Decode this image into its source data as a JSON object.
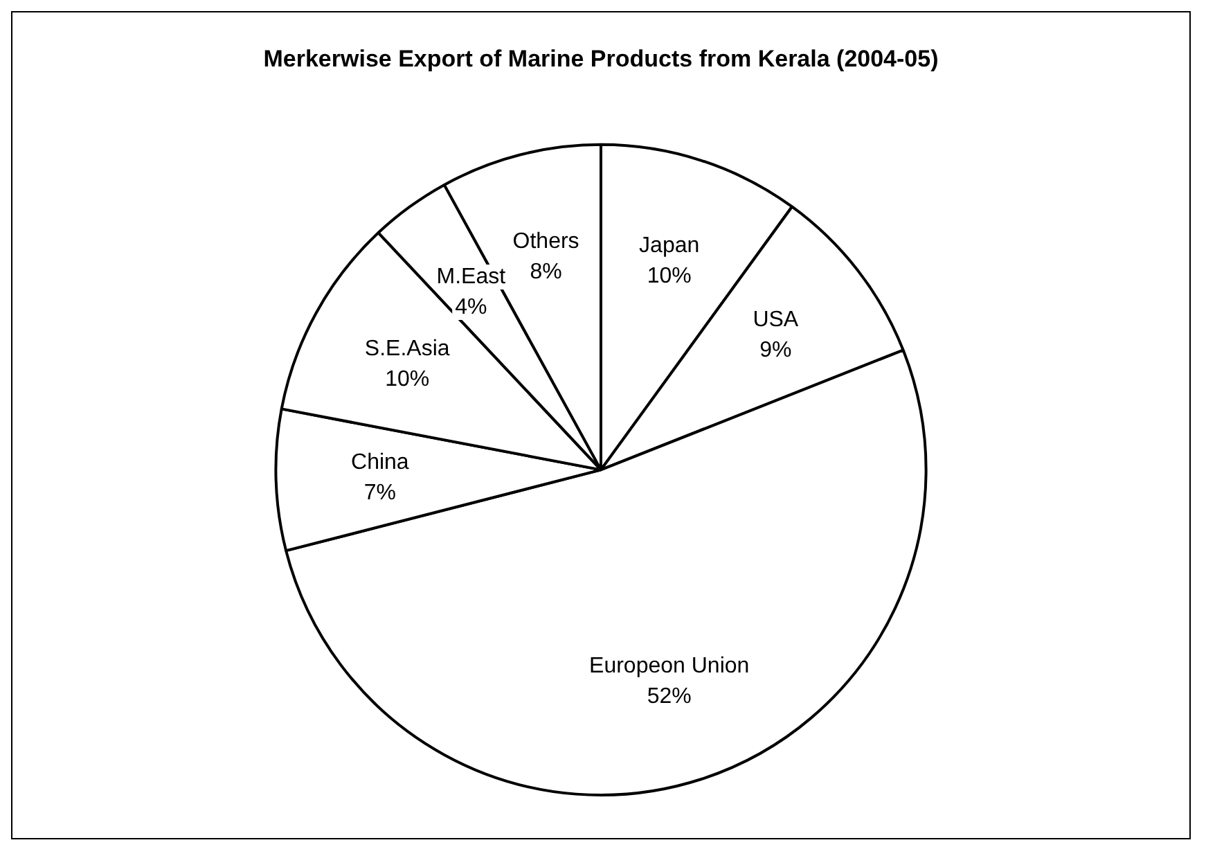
{
  "chart_data": {
    "type": "pie",
    "title": "Merkerwise Export of Marine Products from Kerala (2004-05)",
    "categories": [
      "Japan",
      "USA",
      "Europeon Union",
      "China",
      "S.E.Asia",
      "M.East",
      "Others"
    ],
    "values": [
      10,
      9,
      52,
      7,
      10,
      4,
      8
    ],
    "colors": [
      "#ffffff",
      "#ffffff",
      "#ffffff",
      "#ffffff",
      "#ffffff",
      "#ffffff",
      "#ffffff"
    ],
    "value_labels": [
      "10%",
      "9%",
      "52%",
      "7%",
      "10%",
      "4%",
      "8%"
    ],
    "legend": false
  }
}
